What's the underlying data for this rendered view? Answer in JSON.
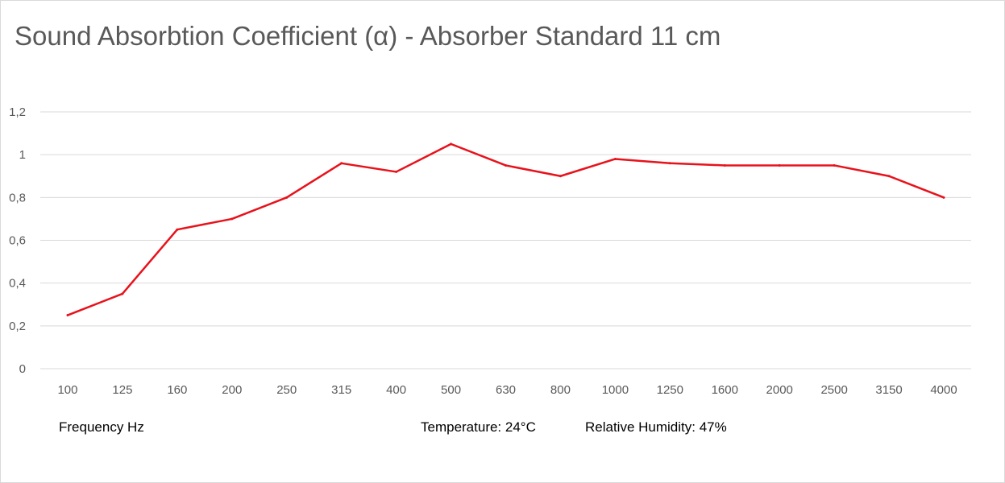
{
  "chart_data": {
    "type": "line",
    "title": "Sound Absorbtion Coefficient (α) - Absorber Standard 11 cm",
    "xlabel": "Frequency Hz",
    "ylabel": "",
    "categories": [
      "100",
      "125",
      "160",
      "200",
      "250",
      "315",
      "400",
      "500",
      "630",
      "800",
      "1000",
      "1250",
      "1600",
      "2000",
      "2500",
      "3150",
      "4000"
    ],
    "series": [
      {
        "values": [
          0.25,
          0.35,
          0.65,
          0.7,
          0.8,
          0.96,
          0.92,
          1.05,
          0.95,
          0.9,
          0.98,
          0.96,
          0.95,
          0.95,
          0.95,
          0.9,
          0.8
        ],
        "color": "#e8121b"
      }
    ],
    "ylim": [
      0,
      1.2
    ],
    "yticks": [
      0,
      0.2,
      0.4,
      0.6,
      0.8,
      1,
      1.2
    ],
    "ytick_labels": [
      "0",
      "0,2",
      "0,4",
      "0,6",
      "0,8",
      "1",
      "1,2"
    ],
    "grid": true,
    "legend": "none",
    "annotations": {
      "temperature": "Temperature:  24°C",
      "humidity": "Relative Humidity: 47%"
    }
  }
}
